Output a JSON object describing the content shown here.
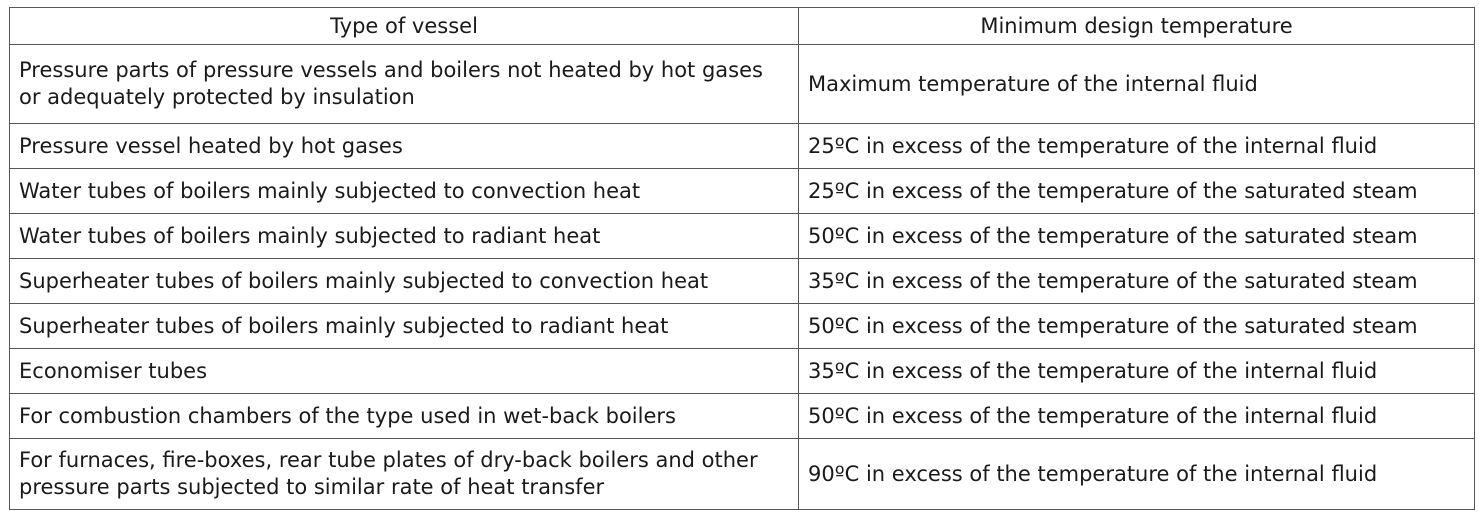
{
  "table": {
    "headers": [
      "Type of vessel",
      "Minimum design temperature"
    ],
    "rows": [
      [
        "Pressure parts of pressure vessels and boilers not heated by hot gases or adequately protected by insulation",
        "Maximum temperature of the internal fluid"
      ],
      [
        "Pressure vessel heated by hot gases",
        "25ºC in excess of the temperature of the internal fluid"
      ],
      [
        "Water tubes of boilers mainly subjected to convection heat",
        "25ºC in excess of the temperature of the saturated steam"
      ],
      [
        "Water tubes of boilers mainly subjected to radiant heat",
        "50ºC in excess of the temperature of the saturated steam"
      ],
      [
        "Superheater tubes of boilers mainly subjected to convection heat",
        "35ºC in excess of the temperature of the saturated steam"
      ],
      [
        "Superheater tubes of boilers mainly subjected to radiant heat",
        "50ºC in excess of the temperature of the saturated steam"
      ],
      [
        "Economiser tubes",
        "35ºC in excess of the temperature of the internal fluid"
      ],
      [
        "For combustion chambers of the type used in wet-back boilers",
        "50ºC in excess of the temperature of the internal fluid"
      ],
      [
        "For furnaces, fire-boxes, rear tube plates of dry-back boilers and other pressure parts subjected to similar rate of heat transfer",
        "90ºC in excess of the temperature of the internal fluid"
      ]
    ]
  }
}
